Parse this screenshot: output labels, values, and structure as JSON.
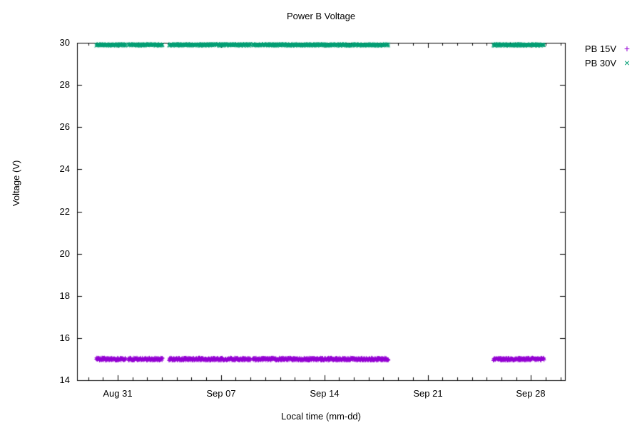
{
  "chart_data": {
    "type": "scatter",
    "title": "Power B Voltage",
    "xlabel": "Local time (mm-dd)",
    "ylabel": "Voltage (V)",
    "grid": false,
    "legend_position": "outside-top-right",
    "x_axis": {
      "unit": "days relative to Aug 31 00:00",
      "range_days": [
        -2.75,
        30.3
      ],
      "major_ticks": [
        {
          "day": 0,
          "label": "Aug 31"
        },
        {
          "day": 7,
          "label": "Sep 07"
        },
        {
          "day": 14,
          "label": "Sep 14"
        },
        {
          "day": 21,
          "label": "Sep 21"
        },
        {
          "day": 28,
          "label": "Sep 28"
        }
      ],
      "minor_tick_interval_days": 1
    },
    "y_axis": {
      "min": 14,
      "max": 30,
      "tick_step": 2,
      "ticks": [
        14,
        16,
        18,
        20,
        22,
        24,
        26,
        28,
        30
      ]
    },
    "series": [
      {
        "name": "PB 15V",
        "marker": "plus",
        "color": "#9400D3",
        "mean_voltage": 15.0,
        "spread_voltage": 0.07,
        "segments_days": [
          [
            -1.45,
            0.55
          ],
          [
            0.72,
            3.05
          ],
          [
            3.48,
            9.0
          ],
          [
            9.15,
            18.35
          ],
          [
            25.45,
            28.9
          ]
        ]
      },
      {
        "name": "PB 30V",
        "marker": "cross",
        "color": "#009E73",
        "mean_voltage": 29.9,
        "spread_voltage": 0.045,
        "segments_days": [
          [
            -1.45,
            0.55
          ],
          [
            0.72,
            3.05
          ],
          [
            3.48,
            9.0
          ],
          [
            9.15,
            18.35
          ],
          [
            25.45,
            28.9
          ]
        ]
      }
    ],
    "data_gaps_days": [
      [
        0.55,
        0.72
      ],
      [
        3.05,
        3.48
      ],
      [
        9.0,
        9.15
      ],
      [
        18.35,
        25.45
      ]
    ]
  }
}
